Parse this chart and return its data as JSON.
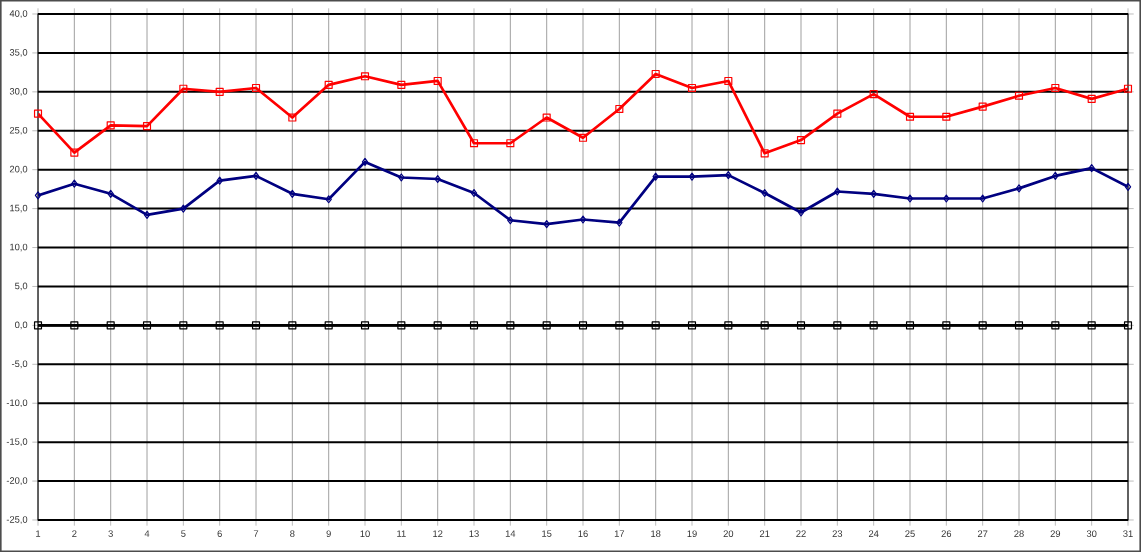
{
  "chart_data": {
    "type": "line",
    "x": [
      1,
      2,
      3,
      4,
      5,
      6,
      7,
      8,
      9,
      10,
      11,
      12,
      13,
      14,
      15,
      16,
      17,
      18,
      19,
      20,
      21,
      22,
      23,
      24,
      25,
      26,
      27,
      28,
      29,
      30,
      31
    ],
    "series": [
      {
        "color": "#ff0000",
        "marker": "square",
        "values": [
          27.2,
          22.2,
          25.7,
          25.6,
          30.4,
          30.0,
          30.5,
          26.7,
          30.9,
          32.0,
          30.9,
          31.4,
          23.4,
          23.4,
          26.7,
          24.1,
          27.8,
          32.3,
          30.5,
          31.4,
          22.1,
          23.8,
          27.2,
          29.7,
          26.8,
          26.8,
          28.1,
          29.5,
          30.5,
          29.1,
          30.4
        ]
      },
      {
        "color": "#000080",
        "marker": "diamond",
        "values": [
          16.7,
          18.2,
          16.9,
          14.2,
          15.0,
          18.6,
          19.2,
          16.9,
          16.2,
          21.0,
          19.0,
          18.8,
          17.0,
          13.5,
          13.0,
          13.6,
          13.2,
          19.1,
          19.1,
          19.3,
          17.0,
          14.5,
          17.2,
          16.9,
          16.3,
          16.3,
          16.3,
          17.6,
          19.2,
          20.2,
          17.8
        ]
      },
      {
        "color": "#000000",
        "marker": "square",
        "values": [
          0,
          0,
          0,
          0,
          0,
          0,
          0,
          0,
          0,
          0,
          0,
          0,
          0,
          0,
          0,
          0,
          0,
          0,
          0,
          0,
          0,
          0,
          0,
          0,
          0,
          0,
          0,
          0,
          0,
          0,
          0
        ]
      }
    ],
    "xlim": [
      1,
      31
    ],
    "xticks": [
      1,
      2,
      3,
      4,
      5,
      6,
      7,
      8,
      9,
      10,
      11,
      12,
      13,
      14,
      15,
      16,
      17,
      18,
      19,
      20,
      21,
      22,
      23,
      24,
      25,
      26,
      27,
      28,
      29,
      30,
      31
    ],
    "ylim": [
      -25,
      40
    ],
    "yticks": [
      {
        "value": -25,
        "label": "-25,0"
      },
      {
        "value": -20,
        "label": "-20,0"
      },
      {
        "value": -15,
        "label": "-15,0"
      },
      {
        "value": -10,
        "label": "-10,0"
      },
      {
        "value": -5,
        "label": "-5,0"
      },
      {
        "value": 0,
        "label": "0,0"
      },
      {
        "value": 5,
        "label": "5,0"
      },
      {
        "value": 10,
        "label": "10,0"
      },
      {
        "value": 15,
        "label": "15,0"
      },
      {
        "value": 20,
        "label": "20,0"
      },
      {
        "value": 25,
        "label": "25,0"
      },
      {
        "value": 30,
        "label": "30,0"
      },
      {
        "value": 35,
        "label": "35,0"
      },
      {
        "value": 40,
        "label": "40,0"
      }
    ],
    "grid": true
  }
}
